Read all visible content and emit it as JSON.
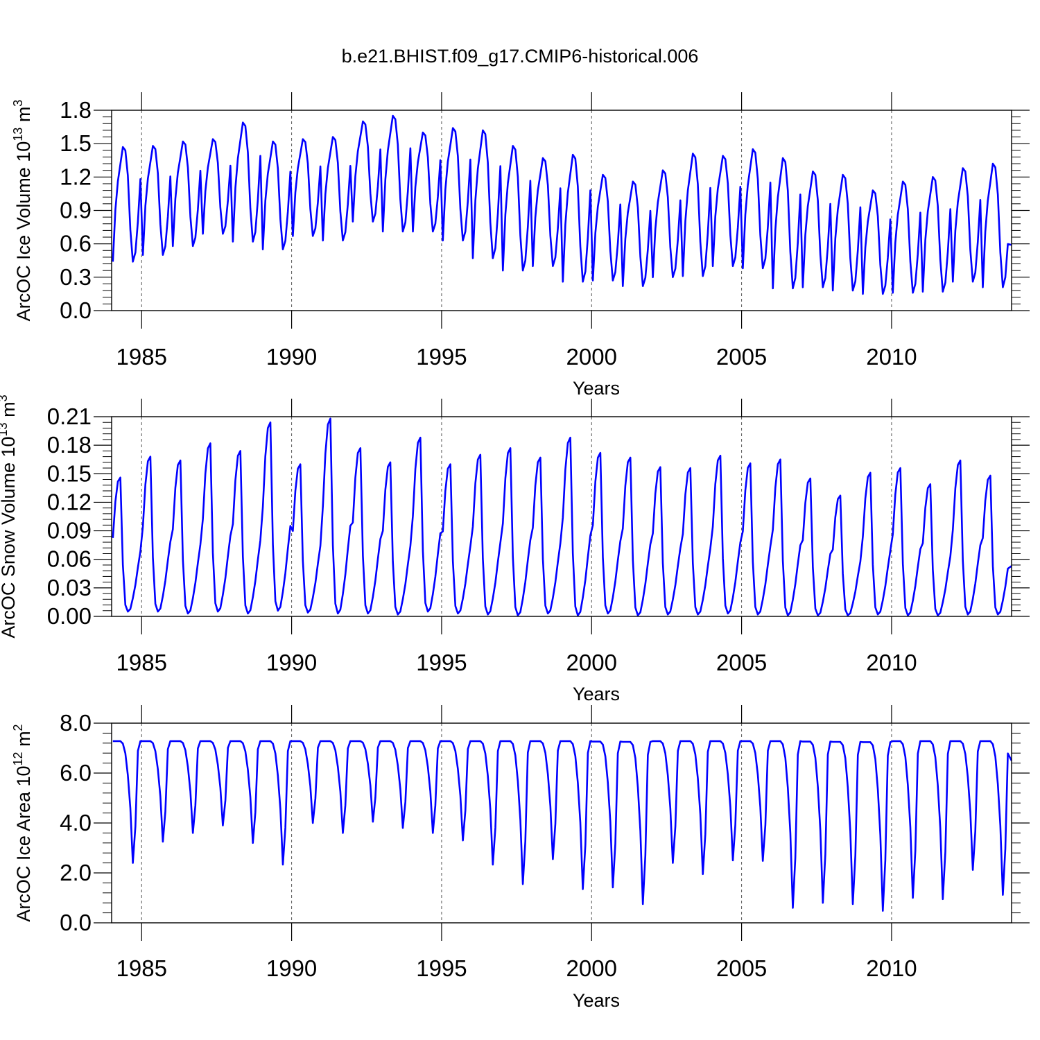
{
  "figure_title": "b.e21.BHIST.f09_g17.CMIP6-historical.006",
  "line_color": "#0000ff",
  "chart_data": [
    {
      "type": "line",
      "title": "b.e21.BHIST.f09_g17.CMIP6-historical.006",
      "xlabel": "Years",
      "ylabel_parts": [
        "ArcOC Ice Volume 10",
        "13",
        " m",
        "3"
      ],
      "xlim": [
        1984,
        2014
      ],
      "ylim": [
        0,
        1.8
      ],
      "y_ticks": [
        0.0,
        0.3,
        0.6,
        0.9,
        1.2,
        1.5,
        1.8
      ],
      "y_tick_labels": [
        "0.0",
        "0.3",
        "0.6",
        "0.9",
        "1.2",
        "1.5",
        "1.8"
      ],
      "x_ticks": [
        1985,
        1990,
        1995,
        2000,
        2005,
        2010
      ],
      "x_tick_labels": [
        "1985",
        "1990",
        "1995",
        "2000",
        "2005",
        "2010"
      ],
      "grid": "vertical dashed at labeled years",
      "series_seasonal": {
        "phase": [
          0.0,
          0.45,
          0.7,
          0.85,
          1.0,
          0.97,
          0.75,
          0.28,
          0.0,
          0.08,
          0.35,
          0.72
        ],
        "annual_max": [
          1.47,
          1.48,
          1.52,
          1.54,
          1.69,
          1.52,
          1.54,
          1.56,
          1.7,
          1.75,
          1.6,
          1.64,
          1.62,
          1.48,
          1.37,
          1.4,
          1.22,
          1.16,
          1.26,
          1.41,
          1.39,
          1.45,
          1.37,
          1.25,
          1.22,
          1.08,
          1.16,
          1.2,
          1.28,
          1.32
        ],
        "annual_min": [
          0.44,
          0.5,
          0.58,
          0.69,
          0.62,
          0.55,
          0.67,
          0.63,
          0.8,
          0.71,
          0.71,
          0.63,
          0.47,
          0.36,
          0.4,
          0.26,
          0.27,
          0.22,
          0.3,
          0.31,
          0.4,
          0.38,
          0.2,
          0.21,
          0.18,
          0.15,
          0.16,
          0.17,
          0.26,
          0.21
        ],
        "final_value": 0.59
      }
    },
    {
      "type": "line",
      "xlabel": "Years",
      "ylabel_parts": [
        "ArcOC Snow Volume 10",
        "13",
        " m",
        "3"
      ],
      "xlim": [
        1984,
        2014
      ],
      "ylim": [
        0,
        0.21
      ],
      "y_ticks": [
        0.0,
        0.03,
        0.06,
        0.09,
        0.12,
        0.15,
        0.18,
        0.21
      ],
      "y_tick_labels": [
        "0.00",
        "0.03",
        "0.06",
        "0.09",
        "0.12",
        "0.15",
        "0.18",
        "0.21"
      ],
      "x_ticks": [
        1985,
        1990,
        1995,
        2000,
        2005,
        2010
      ],
      "x_tick_labels": [
        "1985",
        "1990",
        "1995",
        "2000",
        "2005",
        "2010"
      ],
      "grid": "vertical dashed at labeled years",
      "series_seasonal": {
        "phase": [
          0.55,
          0.82,
          0.97,
          1.0,
          0.35,
          0.05,
          0.0,
          0.02,
          0.1,
          0.2,
          0.33,
          0.45
        ],
        "annual_max": [
          0.146,
          0.168,
          0.164,
          0.182,
          0.174,
          0.204,
          0.16,
          0.208,
          0.177,
          0.162,
          0.188,
          0.16,
          0.17,
          0.177,
          0.167,
          0.188,
          0.172,
          0.167,
          0.157,
          0.156,
          0.169,
          0.161,
          0.165,
          0.145,
          0.127,
          0.151,
          0.156,
          0.139,
          0.164,
          0.148
        ],
        "annual_min": [
          0.005,
          0.005,
          0.003,
          0.005,
          0.003,
          0.006,
          0.004,
          0.003,
          0.003,
          0.002,
          0.005,
          0.003,
          0.002,
          0.001,
          0.003,
          0.001,
          0.003,
          0.001,
          0.002,
          0.002,
          0.003,
          0.002,
          0.001,
          0.001,
          0.001,
          0.002,
          0.001,
          0.001,
          0.002,
          0.002
        ],
        "final_value": 0.053
      }
    },
    {
      "type": "line",
      "xlabel": "Years",
      "ylabel_parts": [
        "ArcOC Ice Area 10",
        "12",
        " m",
        "2"
      ],
      "xlim": [
        1984,
        2014
      ],
      "ylim": [
        0,
        8.0
      ],
      "y_ticks": [
        0.0,
        2.0,
        4.0,
        6.0,
        8.0
      ],
      "y_tick_labels": [
        "0.0",
        "2.0",
        "4.0",
        "6.0",
        "8.0"
      ],
      "x_ticks": [
        1985,
        1990,
        1995,
        2000,
        2005,
        2010
      ],
      "x_tick_labels": [
        "1985",
        "1990",
        "1995",
        "2000",
        "2005",
        "2010"
      ],
      "grid": "vertical dashed at labeled years",
      "series_seasonal": {
        "phase": [
          1.0,
          1.0,
          1.0,
          1.0,
          0.98,
          0.9,
          0.72,
          0.45,
          0.0,
          0.3,
          0.92,
          1.0
        ],
        "annual_max": [
          7.28,
          7.28,
          7.28,
          7.28,
          7.28,
          7.28,
          7.28,
          7.28,
          7.28,
          7.28,
          7.28,
          7.28,
          7.28,
          7.28,
          7.28,
          7.28,
          7.26,
          7.25,
          7.28,
          7.28,
          7.28,
          7.28,
          7.28,
          7.26,
          7.25,
          7.24,
          7.28,
          7.28,
          7.28,
          7.28
        ],
        "annual_min": [
          2.4,
          3.25,
          3.6,
          3.9,
          3.2,
          2.33,
          4.0,
          3.6,
          4.05,
          3.8,
          3.6,
          3.3,
          2.33,
          1.55,
          2.55,
          1.35,
          1.42,
          0.75,
          2.4,
          1.95,
          2.5,
          2.48,
          0.6,
          0.8,
          0.75,
          0.48,
          1.0,
          0.95,
          2.12,
          1.12
        ],
        "final_value": 6.5
      }
    }
  ]
}
